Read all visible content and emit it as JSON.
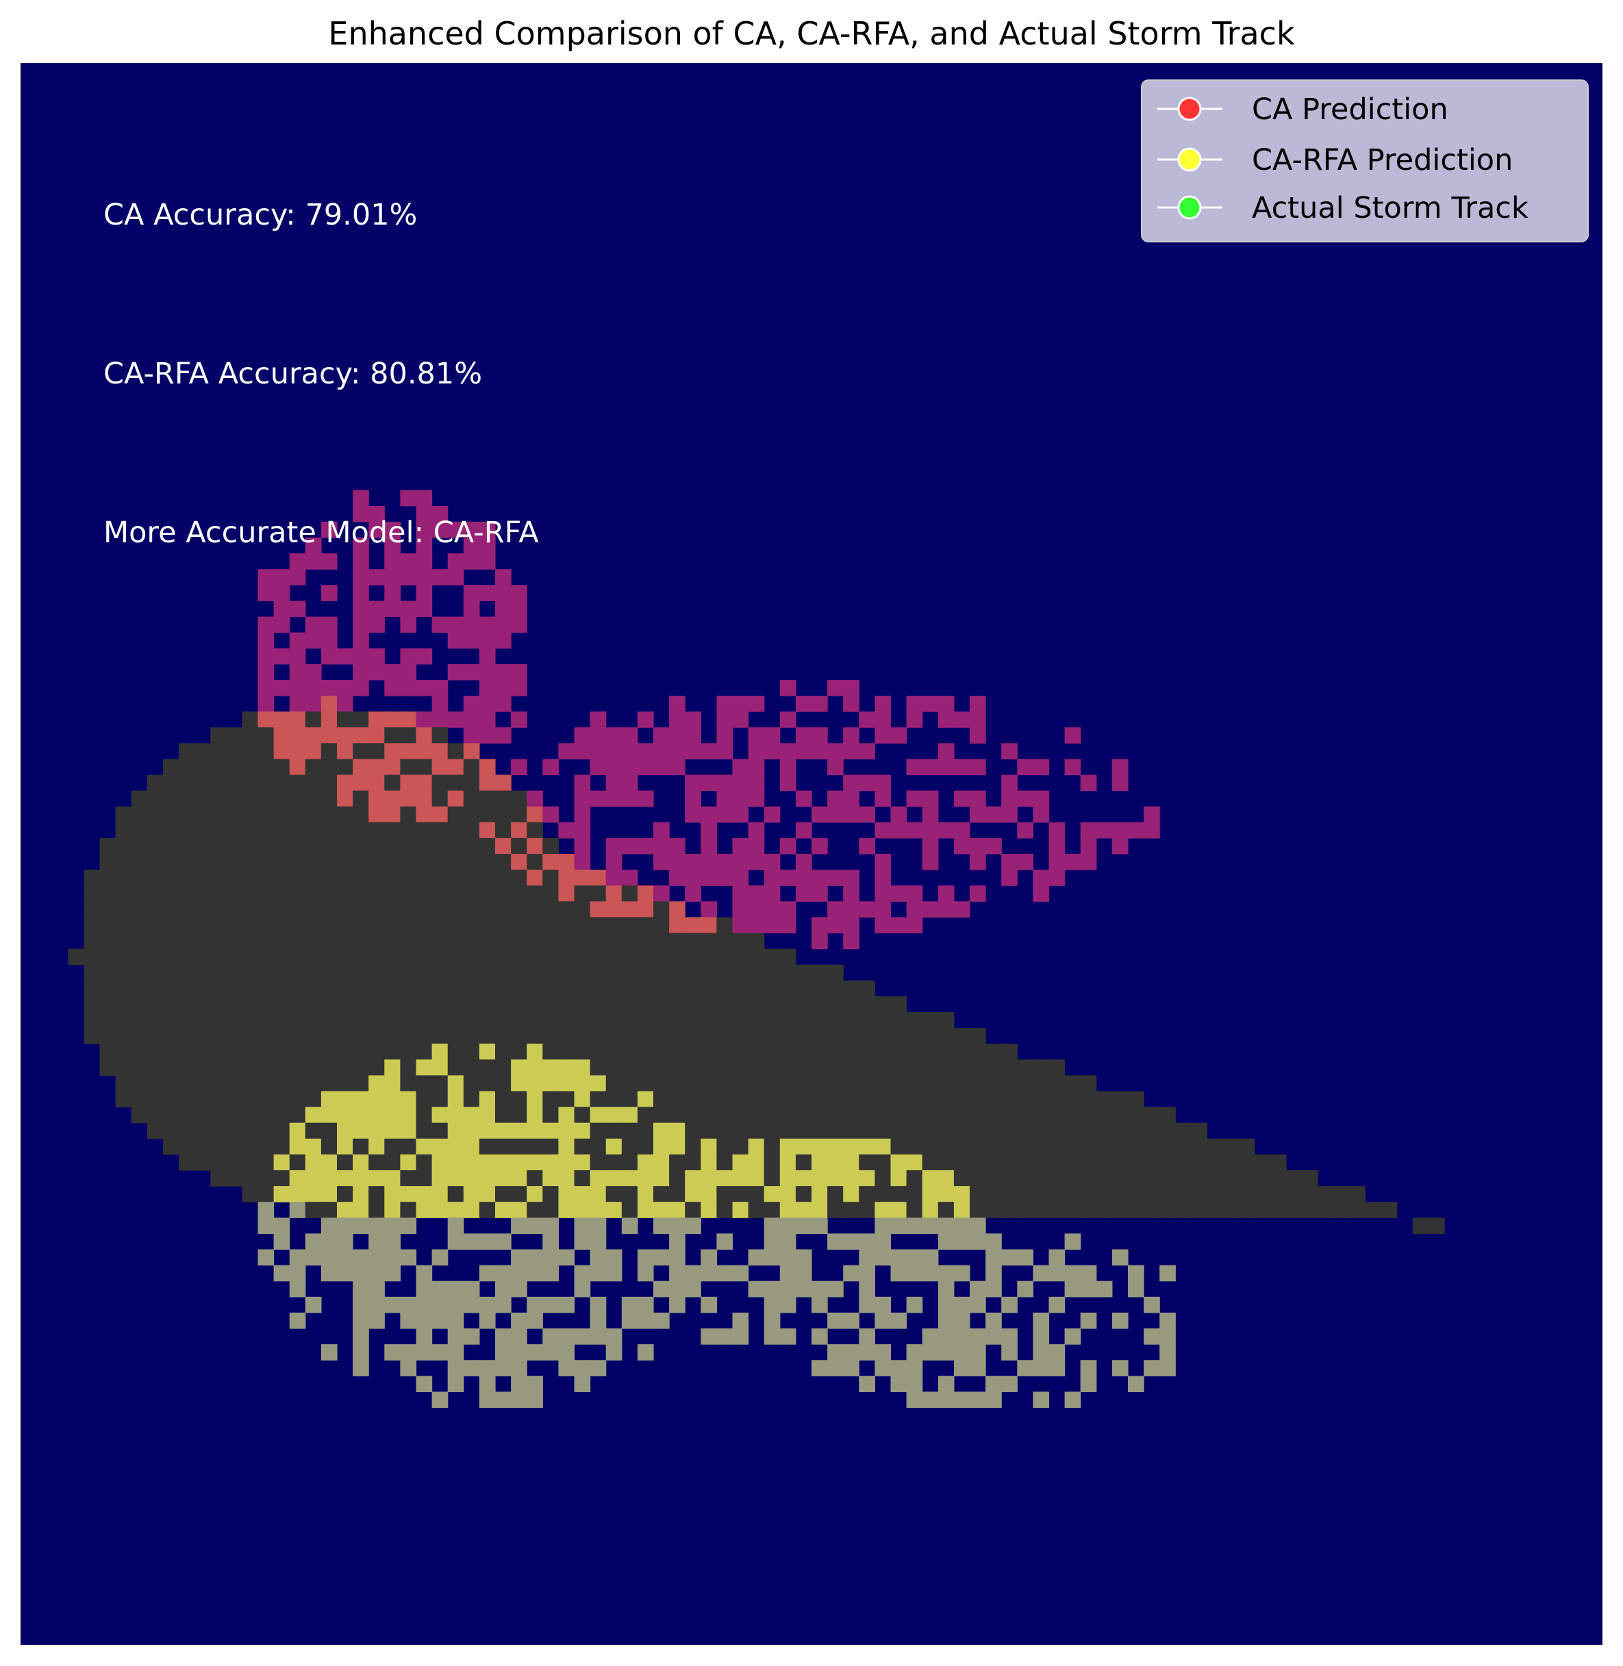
{
  "chart_data": {
    "type": "heatmap",
    "title": "Enhanced Comparison of CA, CA-RFA, and Actual Storm Track",
    "xlabel": "",
    "ylabel": "",
    "axis": "off",
    "grid_size": [
      100,
      100
    ],
    "background_color": "#000066",
    "annotations": [
      "CA Accuracy: 79.01%",
      "CA-RFA Accuracy: 80.81%",
      "More Accurate Model: CA-RFA"
    ],
    "legend": {
      "position": "upper right",
      "entries": [
        {
          "label": "CA Prediction",
          "color": "#ff3333"
        },
        {
          "label": "CA-RFA Prediction",
          "color": "#ffff33"
        },
        {
          "label": "Actual Storm Track",
          "color": "#33ff33"
        }
      ]
    },
    "layers": [
      {
        "name": "Actual Storm Track",
        "rendered_color": "#333333",
        "region": "large teardrop shape, rows 41-73, cols 4-89"
      },
      {
        "name": "CA Prediction",
        "rendered_color": "#992277",
        "overlap_color": "#cc5555",
        "region": "speckled cluster, rows 24-57, cols 15-76"
      },
      {
        "name": "CA-RFA Prediction",
        "rendered_color": "#999980",
        "overlap_color": "#cccc55",
        "region": "speckled cluster, rows 60-84, cols 15-76"
      }
    ]
  }
}
